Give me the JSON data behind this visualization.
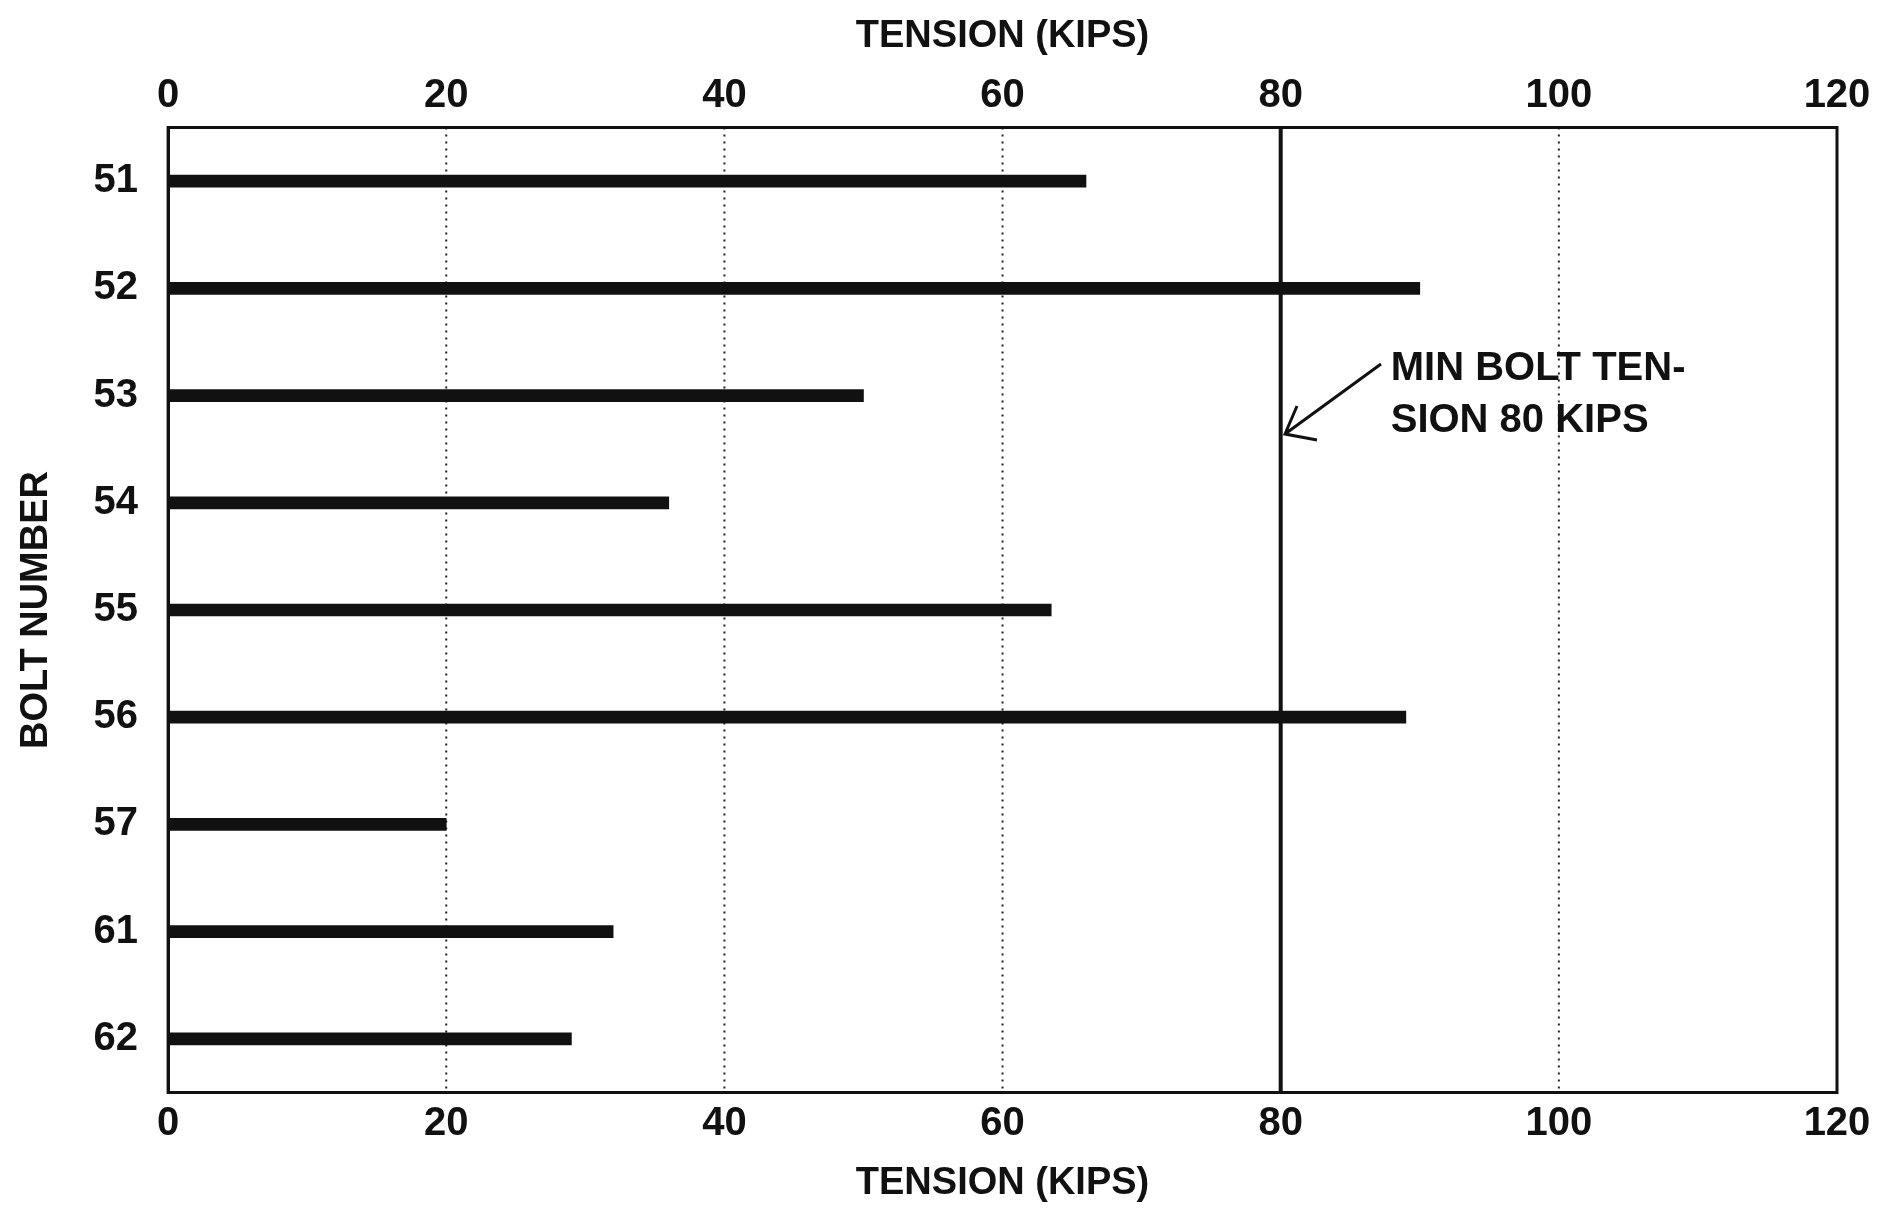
{
  "chart_data": {
    "type": "bar",
    "orientation": "horizontal",
    "xlabel": "TENSION (KIPS)",
    "x2label": "TENSION (KIPS)",
    "ylabel": "BOLT NUMBER",
    "categories": [
      "51",
      "52",
      "53",
      "54",
      "55",
      "56",
      "57",
      "61",
      "62"
    ],
    "values": [
      66,
      90,
      50,
      36,
      63.5,
      89,
      20,
      32,
      29
    ],
    "color": "#111111",
    "xlim": [
      0,
      120
    ],
    "xticks": [
      0,
      20,
      40,
      60,
      80,
      100,
      120
    ],
    "x2lim": [
      0,
      120
    ],
    "x2ticks": [
      0,
      20,
      40,
      60,
      80,
      100,
      120
    ],
    "grid": "x",
    "legend": false,
    "ref_lines": [
      {
        "axis": "x",
        "value": 80,
        "label": "MIN BOLT TEN-\nSION 80 KIPS",
        "color": "#111111",
        "line_style": "solid"
      }
    ]
  }
}
